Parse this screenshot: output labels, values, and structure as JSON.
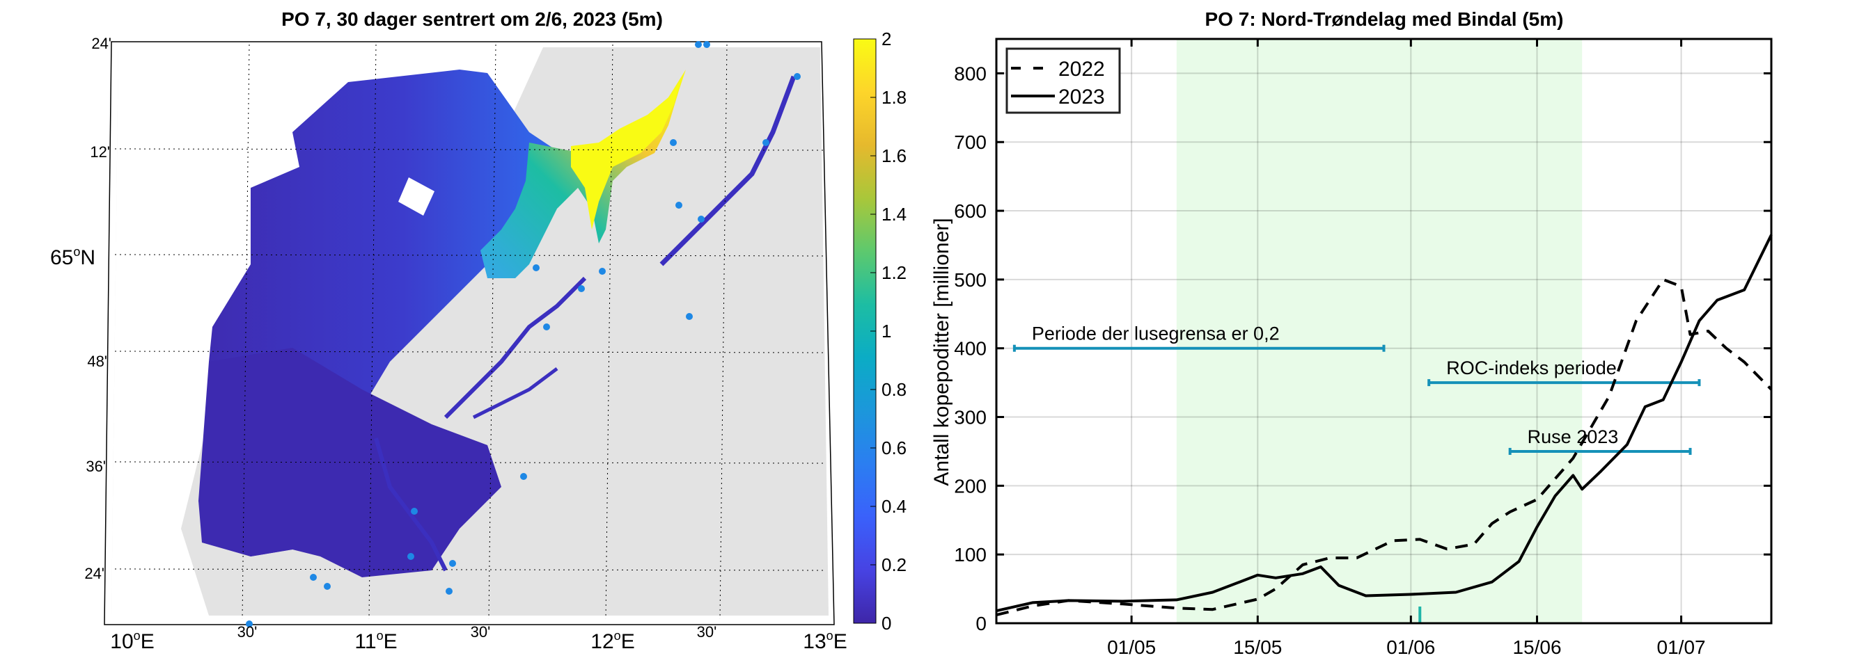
{
  "map": {
    "title": "PO 7, 30 dager sentrert om 2/6, 2023 (5m)",
    "lon_labels": [
      {
        "label": "10",
        "suffix": "E",
        "major": true
      },
      {
        "label": "30'",
        "major": false
      },
      {
        "label": "11",
        "suffix": "E",
        "major": true
      },
      {
        "label": "30'",
        "major": false
      },
      {
        "label": "12",
        "suffix": "E",
        "major": true
      },
      {
        "label": "30'",
        "major": false
      },
      {
        "label": "13",
        "suffix": "E",
        "major": true
      }
    ],
    "lat_labels": [
      {
        "label": "24'",
        "major": false
      },
      {
        "label": "12'",
        "major": false
      },
      {
        "label": "65",
        "suffix": "N",
        "major": true
      },
      {
        "label": "48'",
        "major": false
      },
      {
        "label": "36'",
        "major": false
      },
      {
        "label": "24'",
        "major": false
      }
    ],
    "colorbar": {
      "colormap": "parula",
      "min": 0,
      "max": 2,
      "ticks": [
        "0",
        "0.2",
        "0.4",
        "0.6",
        "0.8",
        "1",
        "1.2",
        "1.4",
        "1.6",
        "1.8",
        "2"
      ],
      "colors": [
        "#3e26a8",
        "#4743e3",
        "#3a61fb",
        "#2b7ef1",
        "#1c97db",
        "#0bacc5",
        "#1dbda3",
        "#5dc96e",
        "#a9c73a",
        "#e6b92d",
        "#fdd52a",
        "#f9fb14"
      ]
    },
    "land_color": "#e3e3e3",
    "station_color": "#1e88e5"
  },
  "chart_data": {
    "type": "line",
    "title": "PO 7: Nord-Trøndelag med Bindal (5m)",
    "xlabel": "",
    "ylabel": "Antall kopepoditter [millioner]",
    "x_unit": "day-of-year (2023 calendar)",
    "xlim": [
      "2023-04-16",
      "2023-07-11"
    ],
    "ylim": [
      0,
      850
    ],
    "yticks": [
      0,
      100,
      200,
      300,
      400,
      500,
      600,
      700,
      800
    ],
    "xticks": [
      {
        "date": "2023-05-01",
        "label": "01/05"
      },
      {
        "date": "2023-05-15",
        "label": "15/05"
      },
      {
        "date": "2023-06-01",
        "label": "01/06"
      },
      {
        "date": "2023-06-15",
        "label": "15/06"
      },
      {
        "date": "2023-07-01",
        "label": "01/07"
      }
    ],
    "grid": true,
    "legend": {
      "position": "top-left",
      "entries": [
        {
          "name": "2022",
          "style": "dashed"
        },
        {
          "name": "2023",
          "style": "solid"
        }
      ]
    },
    "shaded_period": {
      "start": "2023-05-06",
      "end": "2023-06-20",
      "color": "#e8fbe8"
    },
    "marker_date": {
      "date": "2023-06-02",
      "color": "#1fb5a8"
    },
    "series": [
      {
        "name": "2022",
        "style": "dashed",
        "points": [
          [
            "2023-04-16",
            12
          ],
          [
            "2023-04-20",
            25
          ],
          [
            "2023-04-24",
            33
          ],
          [
            "2023-04-30",
            28
          ],
          [
            "2023-05-06",
            22
          ],
          [
            "2023-05-10",
            20
          ],
          [
            "2023-05-15",
            35
          ],
          [
            "2023-05-17",
            50
          ],
          [
            "2023-05-20",
            85
          ],
          [
            "2023-05-23",
            95
          ],
          [
            "2023-05-26",
            95
          ],
          [
            "2023-05-30",
            120
          ],
          [
            "2023-06-02",
            122
          ],
          [
            "2023-06-05",
            108
          ],
          [
            "2023-06-08",
            115
          ],
          [
            "2023-06-10",
            145
          ],
          [
            "2023-06-12",
            162
          ],
          [
            "2023-06-15",
            180
          ],
          [
            "2023-06-19",
            240
          ],
          [
            "2023-06-23",
            330
          ],
          [
            "2023-06-26",
            440
          ],
          [
            "2023-06-29",
            500
          ],
          [
            "2023-07-01",
            490
          ],
          [
            "2023-07-02",
            420
          ],
          [
            "2023-07-04",
            425
          ],
          [
            "2023-07-06",
            400
          ],
          [
            "2023-07-08",
            380
          ],
          [
            "2023-07-11",
            340
          ]
        ]
      },
      {
        "name": "2023",
        "style": "solid",
        "points": [
          [
            "2023-04-16",
            18
          ],
          [
            "2023-04-20",
            30
          ],
          [
            "2023-04-24",
            33
          ],
          [
            "2023-04-30",
            32
          ],
          [
            "2023-05-06",
            34
          ],
          [
            "2023-05-10",
            45
          ],
          [
            "2023-05-13",
            60
          ],
          [
            "2023-05-15",
            70
          ],
          [
            "2023-05-17",
            66
          ],
          [
            "2023-05-20",
            72
          ],
          [
            "2023-05-22",
            82
          ],
          [
            "2023-05-24",
            55
          ],
          [
            "2023-05-27",
            40
          ],
          [
            "2023-06-01",
            42
          ],
          [
            "2023-06-06",
            45
          ],
          [
            "2023-06-10",
            60
          ],
          [
            "2023-06-13",
            90
          ],
          [
            "2023-06-15",
            140
          ],
          [
            "2023-06-17",
            185
          ],
          [
            "2023-06-19",
            215
          ],
          [
            "2023-06-20",
            195
          ],
          [
            "2023-06-22",
            220
          ],
          [
            "2023-06-25",
            260
          ],
          [
            "2023-06-27",
            315
          ],
          [
            "2023-06-29",
            325
          ],
          [
            "2023-07-01",
            380
          ],
          [
            "2023-07-03",
            440
          ],
          [
            "2023-07-05",
            470
          ],
          [
            "2023-07-08",
            485
          ],
          [
            "2023-07-11",
            565
          ]
        ]
      }
    ],
    "annotations": [
      {
        "label": "Periode der lusegrensa er 0,2",
        "y": 400,
        "start": "2023-04-18",
        "end": "2023-05-29",
        "color": "#1591b8"
      },
      {
        "label": "ROC-indeks periode",
        "y": 350,
        "start": "2023-06-03",
        "end": "2023-07-03",
        "color": "#1591b8"
      },
      {
        "label": "Ruse 2023",
        "y": 250,
        "start": "2023-06-12",
        "end": "2023-07-02",
        "color": "#1591b8"
      }
    ]
  }
}
